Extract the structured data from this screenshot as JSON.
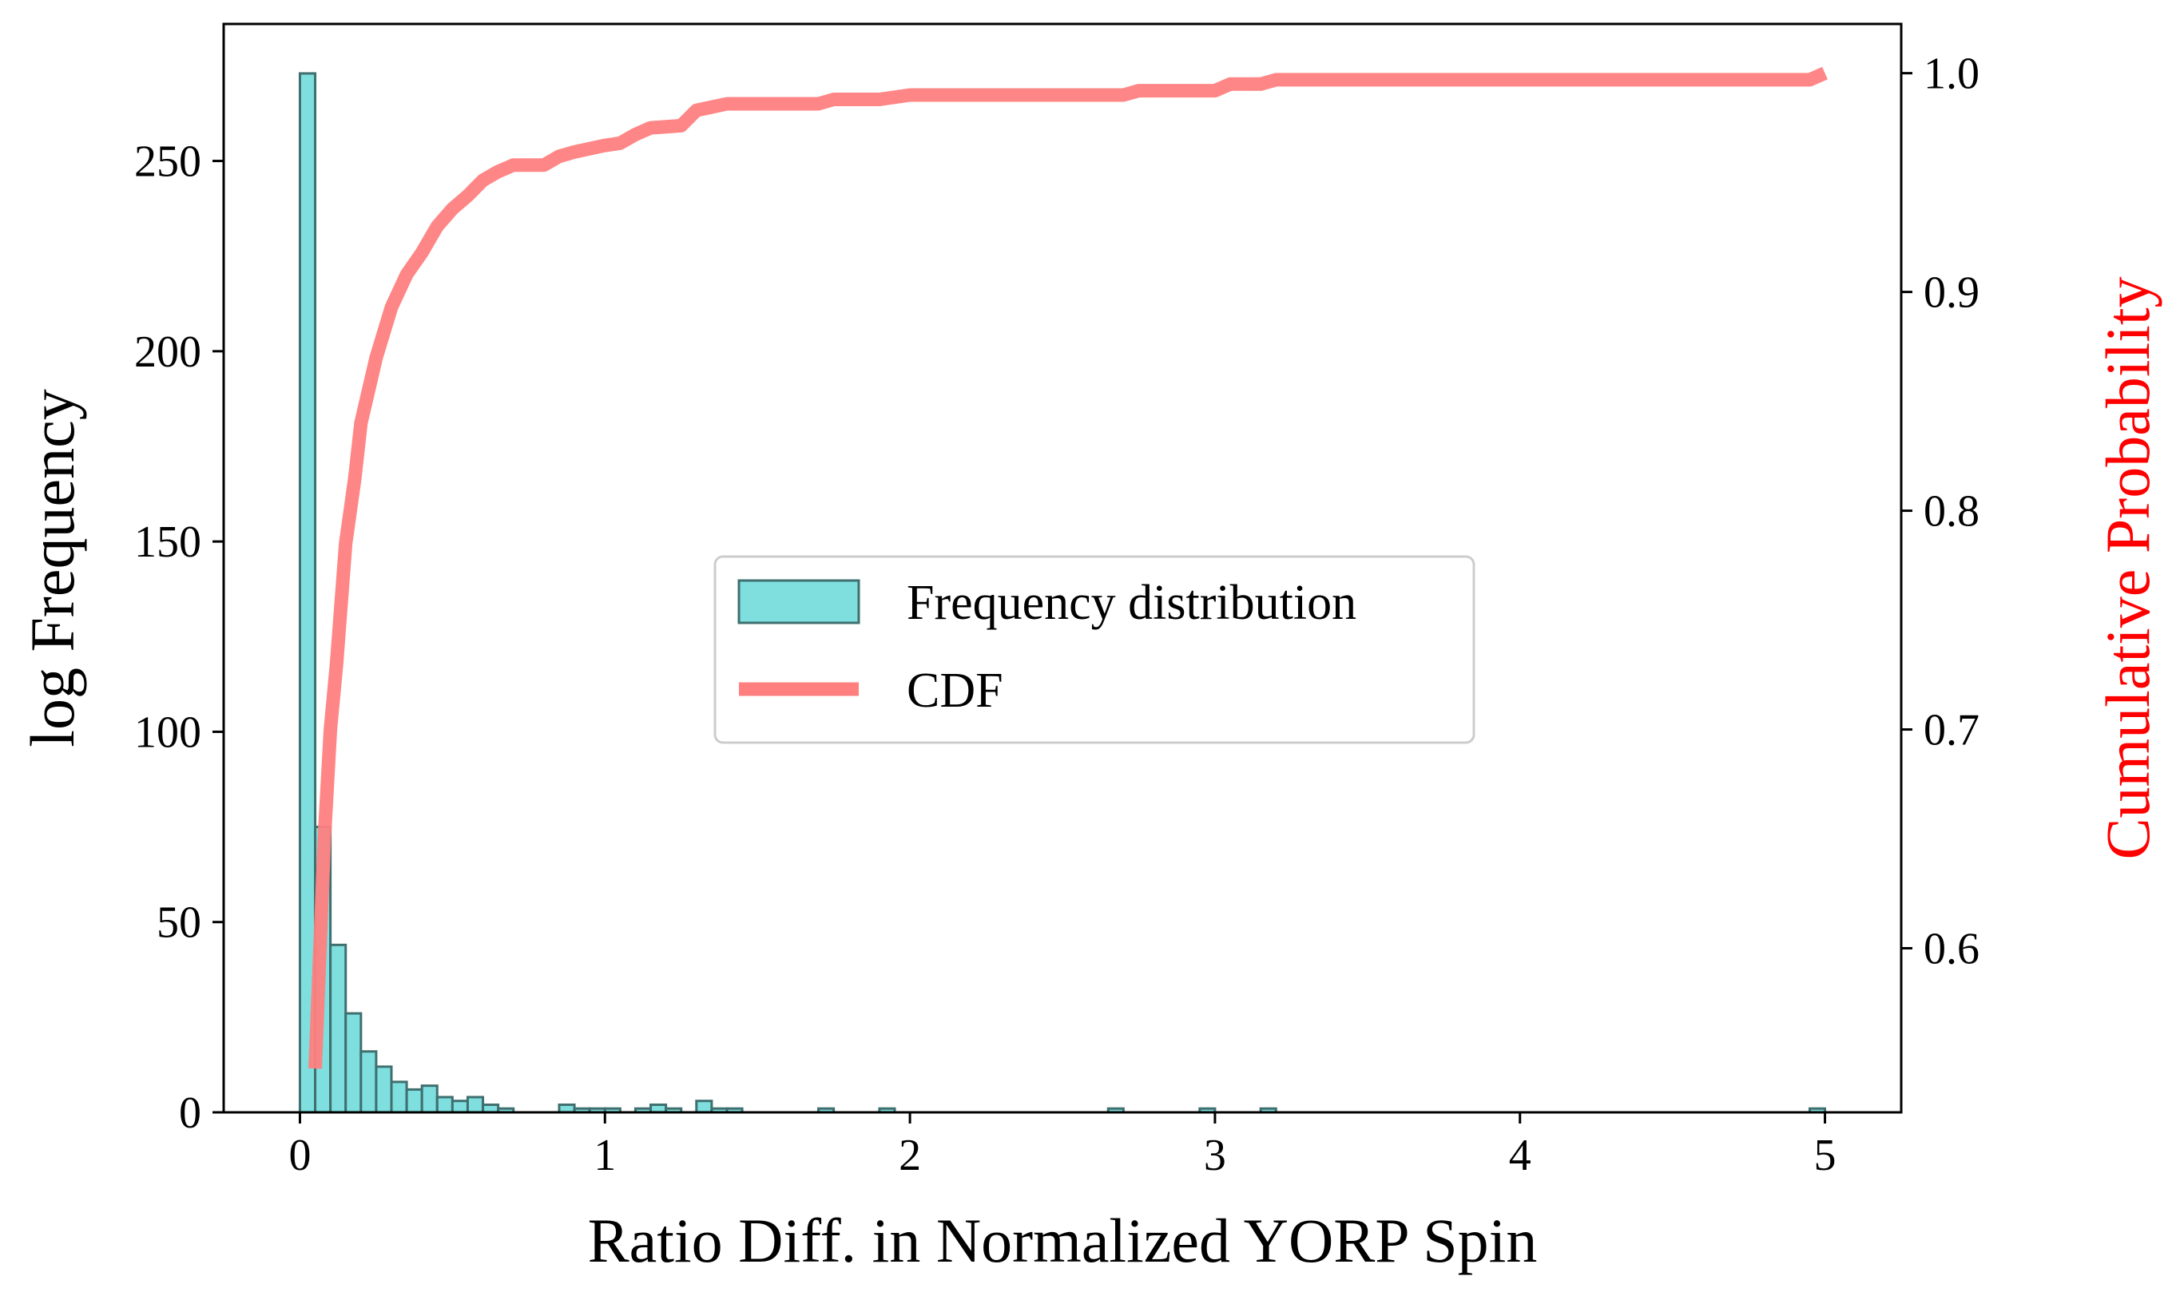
{
  "chart_data": {
    "type": "bar",
    "xlabel": "Ratio Diff. in Normalized YORP Spin",
    "ylabel": "log Frequency",
    "y2label": "Cumulative Probability",
    "xlim": [
      -0.25,
      5.25
    ],
    "ylim": [
      0,
      286
    ],
    "y2lim": [
      0.525,
      1.0225
    ],
    "x_ticks": [
      0,
      1,
      2,
      3,
      4,
      5
    ],
    "y_ticks": [
      0,
      50,
      100,
      150,
      200,
      250
    ],
    "y2_ticks": [
      0.6,
      0.7,
      0.8,
      0.9,
      1.0
    ],
    "y2_tick_labels": [
      "0.6",
      "0.7",
      "0.8",
      "0.9",
      "1.0"
    ],
    "grid": false,
    "legend": {
      "position": "center",
      "entries": [
        "Frequency distribution",
        "CDF"
      ]
    },
    "histogram": {
      "name": "Frequency distribution",
      "bin_width": 0.05,
      "bin_start": 0.0,
      "color": "#7fdede",
      "edge_color": "#3f6f6f",
      "counts": [
        273,
        75,
        44,
        26,
        16,
        12,
        8,
        6,
        7,
        4,
        3,
        4,
        2,
        1,
        0,
        0,
        0,
        2,
        1,
        1,
        1,
        0,
        1,
        2,
        1,
        0,
        3,
        1,
        1,
        0,
        0,
        0,
        0,
        0,
        1,
        0,
        0,
        0,
        1,
        0,
        0,
        0,
        0,
        0,
        0,
        0,
        0,
        0,
        0,
        0,
        0,
        0,
        0,
        1,
        0,
        0,
        0,
        0,
        0,
        1,
        0,
        0,
        0,
        1,
        0,
        0,
        0,
        0,
        0,
        0,
        0,
        0,
        0,
        0,
        0,
        0,
        0,
        0,
        0,
        0,
        0,
        0,
        0,
        0,
        0,
        0,
        0,
        0,
        0,
        0,
        0,
        0,
        0,
        0,
        0,
        0,
        0,
        0,
        0,
        1
      ]
    },
    "cdf": {
      "name": "CDF",
      "color": "#ff7f7f",
      "y2_color": "#ff0000",
      "x": [
        0.05,
        0.08,
        0.1,
        0.12,
        0.15,
        0.18,
        0.2,
        0.25,
        0.3,
        0.35,
        0.4,
        0.45,
        0.5,
        0.55,
        0.6,
        0.65,
        0.7,
        0.8,
        0.85,
        0.9,
        1.0,
        1.05,
        1.1,
        1.15,
        1.25,
        1.3,
        1.4,
        1.5,
        1.7,
        1.75,
        1.9,
        2.0,
        2.7,
        2.75,
        3.0,
        3.05,
        3.15,
        3.2,
        4.95,
        5.0
      ],
      "y": [
        0.545,
        0.65,
        0.7,
        0.73,
        0.785,
        0.815,
        0.84,
        0.87,
        0.893,
        0.908,
        0.918,
        0.93,
        0.938,
        0.944,
        0.951,
        0.955,
        0.958,
        0.958,
        0.962,
        0.964,
        0.967,
        0.968,
        0.972,
        0.975,
        0.976,
        0.983,
        0.986,
        0.986,
        0.986,
        0.988,
        0.988,
        0.99,
        0.99,
        0.992,
        0.992,
        0.995,
        0.995,
        0.997,
        0.997,
        1.0
      ]
    }
  }
}
